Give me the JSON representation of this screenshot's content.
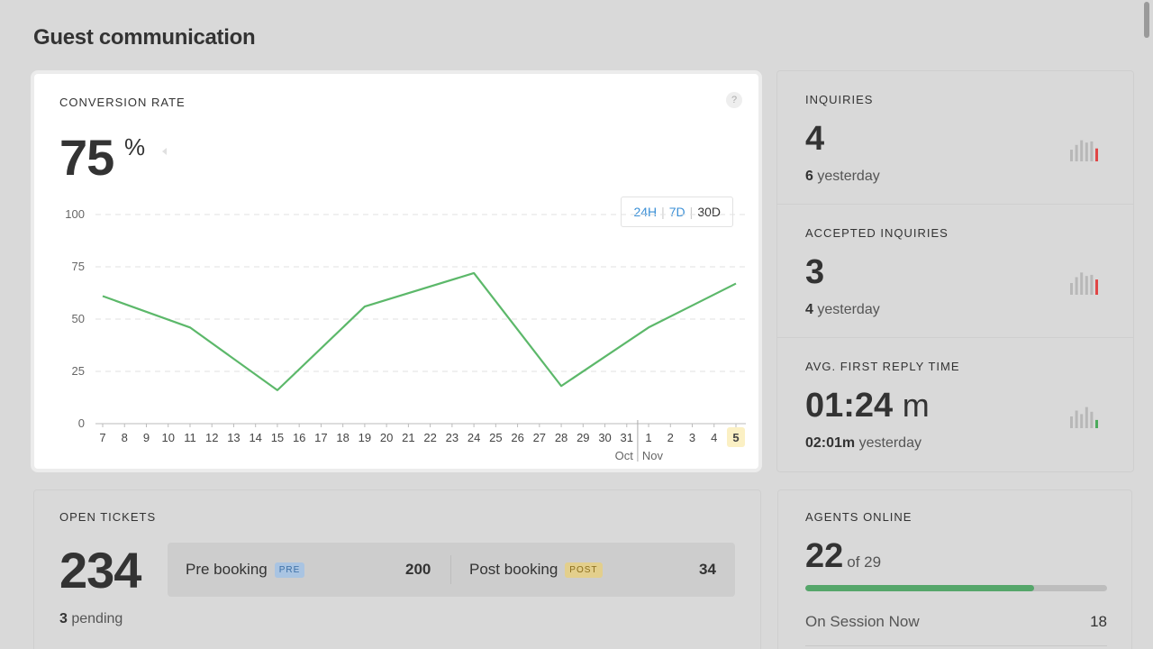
{
  "page": {
    "title": "Guest communication"
  },
  "conversion": {
    "label": "CONVERSION RATE",
    "help": "?",
    "value": "75",
    "unit": "%",
    "ranges": [
      "24H",
      "7D",
      "30D"
    ],
    "active_range": "30D",
    "chart_data": {
      "type": "line",
      "x": [
        "7",
        "8",
        "9",
        "10",
        "11",
        "12",
        "13",
        "14",
        "15",
        "16",
        "17",
        "18",
        "19",
        "20",
        "21",
        "22",
        "23",
        "24",
        "25",
        "26",
        "27",
        "28",
        "29",
        "30",
        "31",
        "1",
        "2",
        "3",
        "4",
        "5"
      ],
      "month_labels": [
        "Oct",
        "Nov"
      ],
      "highlighted_tick": "5",
      "ylim": [
        0,
        100
      ],
      "yticks": [
        0,
        25,
        50,
        75,
        100
      ],
      "grid": true,
      "points": [
        {
          "x": "7",
          "y": 61
        },
        {
          "x": "11",
          "y": 46
        },
        {
          "x": "15",
          "y": 16
        },
        {
          "x": "19",
          "y": 56
        },
        {
          "x": "24",
          "y": 72
        },
        {
          "x": "28",
          "y": 18
        },
        {
          "x": "1",
          "y": 46
        },
        {
          "x": "5",
          "y": 67
        }
      ],
      "color": "#5cb86a"
    }
  },
  "metrics": [
    {
      "label": "INQUIRIES",
      "value": "4",
      "unit": "",
      "sub_value": "6",
      "sub_text": "yesterday",
      "trend_color": "#e04646",
      "spark": [
        0.5,
        0.7,
        0.9,
        0.8,
        0.85,
        0.55
      ]
    },
    {
      "label": "ACCEPTED INQUIRIES",
      "value": "3",
      "unit": "",
      "sub_value": "4",
      "sub_text": "yesterday",
      "trend_color": "#e04646",
      "spark": [
        0.5,
        0.75,
        0.95,
        0.8,
        0.85,
        0.65
      ]
    },
    {
      "label": "AVG. FIRST REPLY TIME",
      "value": "01:24",
      "unit": "m",
      "sub_value": "02:01m",
      "sub_text": "yesterday",
      "trend_color": "#4caa5c",
      "spark": [
        0.5,
        0.75,
        0.6,
        0.9,
        0.7,
        0.35
      ]
    }
  ],
  "tickets": {
    "label": "OPEN TICKETS",
    "value": "234",
    "pending_count": "3",
    "pending_text": "pending",
    "pre": {
      "label": "Pre booking",
      "tag": "PRE",
      "count": "200"
    },
    "post": {
      "label": "Post booking",
      "tag": "POST",
      "count": "34"
    }
  },
  "agents": {
    "label": "AGENTS ONLINE",
    "online": "22",
    "of_text": "of 29",
    "online_fraction": 0.7586,
    "session_label": "On Session Now",
    "session_count": "18"
  }
}
